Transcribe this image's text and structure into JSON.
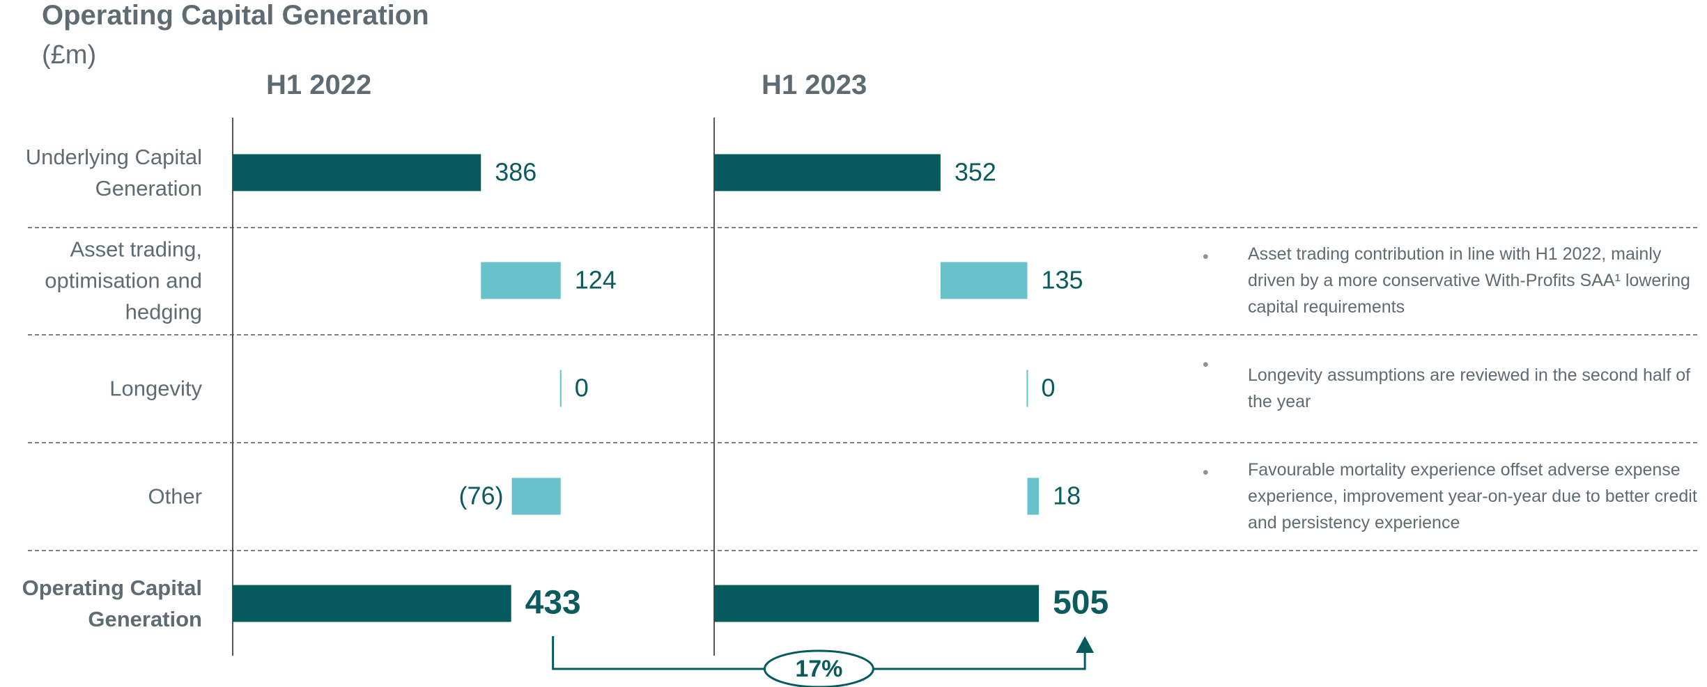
{
  "chart_data": {
    "type": "waterfall",
    "title": "Operating Capital Generation",
    "subtitle": "(£m)",
    "categories": [
      "Underlying Capital Generation",
      "Asset trading, optimisation and hedging",
      "Longevity",
      "Other",
      "Operating Capital Generation"
    ],
    "series": [
      {
        "name": "H1 2022",
        "values": [
          386,
          124,
          0,
          -76,
          433
        ],
        "value_labels": [
          "386",
          "124",
          "0",
          "(76)",
          "433"
        ]
      },
      {
        "name": "H1 2023",
        "values": [
          352,
          135,
          0,
          18,
          505
        ],
        "value_labels": [
          "352",
          "135",
          "0",
          "18",
          "505"
        ]
      }
    ],
    "colors": {
      "total": "#055a5e",
      "change": "#67c2c9"
    },
    "annotation": "17%",
    "notes": [
      "Asset trading contribution in line with H1 2022, mainly driven by a more conservative With-Profits SAA¹ lowering capital requirements",
      "Longevity assumptions are reviewed in the second half of the year",
      "Favourable mortality experience offset adverse expense experience, improvement year-on-year due to better credit and persistency experience"
    ]
  }
}
